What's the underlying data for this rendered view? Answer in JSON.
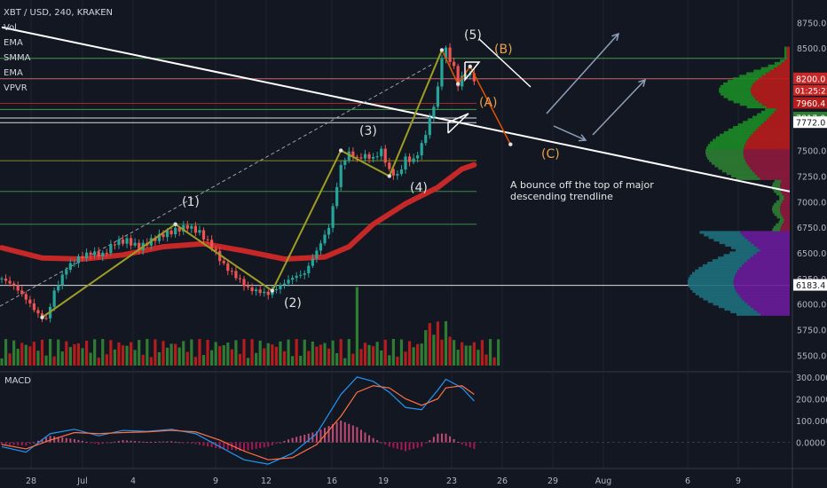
{
  "legend": {
    "symbol": "XBT / USD, 240, KRAKEN",
    "indicators": [
      "Vol",
      "EMA",
      "SMMA",
      "EMA",
      "VPVR"
    ]
  },
  "macd_label": "MACD",
  "annotation": "A bounce off the top of major descending trendline",
  "wave_labels": [
    "(1)",
    "(2)",
    "(3)",
    "(4)",
    "(5)",
    "(A)",
    "(B)",
    "(C)"
  ],
  "chart_data": {
    "type": "candlestick",
    "x_tick_labels": [
      "28",
      "Jul",
      "4",
      "9",
      "12",
      "16",
      "19",
      "23",
      "26",
      "29",
      "Aug",
      "6",
      "9"
    ],
    "y_tick_labels": [
      "8750.0",
      "8500.0",
      "8200.0",
      "7960.4",
      "7817.0",
      "7772.0",
      "7500.0",
      "7250.0",
      "7000.0",
      "6750.0",
      "6500.0",
      "6250.0",
      "6183.4",
      "6000.0",
      "5750.0",
      "5500.0"
    ],
    "ylim": [
      5400,
      8900
    ],
    "current_price_label": "8200.0",
    "countdown_label": "01:25:21",
    "price_tags": [
      {
        "price": 8200.0,
        "label": "8200.0",
        "color": "#c62828"
      },
      {
        "price": 7960.4,
        "label": "7960.4",
        "color": "#b71c1c"
      },
      {
        "price": 7817.0,
        "label": "7817.0",
        "color": "#2e7d32"
      },
      {
        "price": 7772.0,
        "label": "7772.0",
        "color": "#ffffff"
      },
      {
        "price": 6183.4,
        "label": "6183.4",
        "color": "#ffffff"
      }
    ],
    "horizontal_levels": [
      {
        "price": 8400,
        "color": "#4caf50"
      },
      {
        "price": 8200,
        "color": "#e57373"
      },
      {
        "price": 7960.4,
        "color": "#c62828"
      },
      {
        "price": 7900,
        "color": "#4caf50"
      },
      {
        "price": 7817,
        "color": "#ffffff"
      },
      {
        "price": 7772,
        "color": "#ffffff"
      },
      {
        "price": 7400,
        "color": "#9e9d24"
      },
      {
        "price": 7100,
        "color": "#43a047"
      },
      {
        "price": 6780,
        "color": "#43a047"
      },
      {
        "price": 6183.4,
        "color": "#ffffff"
      }
    ],
    "price_path": [
      [
        0,
        6250
      ],
      [
        3,
        6180
      ],
      [
        6,
        6050
      ],
      [
        9,
        5900
      ],
      [
        11,
        5850
      ],
      [
        13,
        6120
      ],
      [
        16,
        6350
      ],
      [
        19,
        6450
      ],
      [
        22,
        6500
      ],
      [
        25,
        6480
      ],
      [
        28,
        6600
      ],
      [
        31,
        6620
      ],
      [
        34,
        6550
      ],
      [
        37,
        6620
      ],
      [
        40,
        6680
      ],
      [
        43,
        6720
      ],
      [
        46,
        6760
      ],
      [
        49,
        6700
      ],
      [
        52,
        6560
      ],
      [
        55,
        6380
      ],
      [
        58,
        6270
      ],
      [
        61,
        6150
      ],
      [
        64,
        6120
      ],
      [
        66,
        6100
      ],
      [
        69,
        6180
      ],
      [
        72,
        6260
      ],
      [
        75,
        6300
      ],
      [
        78,
        6520
      ],
      [
        81,
        6750
      ],
      [
        84,
        7350
      ],
      [
        86,
        7480
      ],
      [
        88,
        7420
      ],
      [
        90,
        7450
      ],
      [
        92,
        7420
      ],
      [
        94,
        7500
      ],
      [
        96,
        7300
      ],
      [
        98,
        7250
      ],
      [
        100,
        7420
      ],
      [
        102,
        7400
      ],
      [
        104,
        7550
      ],
      [
        106,
        7800
      ],
      [
        108,
        8100
      ],
      [
        109,
        8420
      ],
      [
        110,
        8480
      ],
      [
        112,
        8300
      ],
      [
        113,
        8150
      ],
      [
        115,
        8260
      ],
      [
        117,
        8200
      ]
    ],
    "ema_red_path": [
      [
        0,
        6550
      ],
      [
        10,
        6450
      ],
      [
        20,
        6440
      ],
      [
        30,
        6480
      ],
      [
        40,
        6560
      ],
      [
        50,
        6590
      ],
      [
        60,
        6520
      ],
      [
        70,
        6440
      ],
      [
        80,
        6460
      ],
      [
        86,
        6560
      ],
      [
        92,
        6780
      ],
      [
        100,
        6980
      ],
      [
        108,
        7140
      ],
      [
        114,
        7320
      ],
      [
        117,
        7360
      ]
    ],
    "trendline": {
      "from": [
        0,
        8400
      ],
      "to": [
        180,
        7100
      ],
      "color": "#ffffff"
    },
    "wave_points": [
      {
        "bar": 10,
        "price": 5870,
        "label": ""
      },
      {
        "bar": 43,
        "price": 6780,
        "label": "(1)"
      },
      {
        "bar": 67,
        "price": 6130,
        "label": "(2)"
      },
      {
        "bar": 84,
        "price": 7500,
        "label": "(3)"
      },
      {
        "bar": 96,
        "price": 7250,
        "label": "(4)"
      },
      {
        "bar": 109,
        "price": 8480,
        "label": "(5)"
      },
      {
        "bar": 113,
        "price": 8150,
        "label": "(A)"
      },
      {
        "bar": 116,
        "price": 8320,
        "label": "(B)"
      },
      {
        "bar": 126,
        "price": 7560,
        "label": "(C)"
      }
    ],
    "volume_axis": {
      "labels": [],
      "max": 1
    },
    "macd": {
      "y_tick_labels": [
        "300.0000",
        "200.0000",
        "100.0000",
        "0.0000"
      ],
      "ylim": [
        -120,
        320
      ],
      "macd_line": [
        [
          0,
          -20
        ],
        [
          6,
          -45
        ],
        [
          12,
          40
        ],
        [
          18,
          60
        ],
        [
          24,
          30
        ],
        [
          30,
          55
        ],
        [
          36,
          50
        ],
        [
          42,
          60
        ],
        [
          48,
          40
        ],
        [
          54,
          -20
        ],
        [
          60,
          -80
        ],
        [
          66,
          -100
        ],
        [
          72,
          -50
        ],
        [
          78,
          40
        ],
        [
          84,
          220
        ],
        [
          88,
          300
        ],
        [
          92,
          280
        ],
        [
          96,
          230
        ],
        [
          100,
          160
        ],
        [
          104,
          150
        ],
        [
          108,
          240
        ],
        [
          110,
          290
        ],
        [
          114,
          250
        ],
        [
          117,
          190
        ]
      ],
      "signal_line": [
        [
          0,
          -10
        ],
        [
          6,
          -30
        ],
        [
          12,
          10
        ],
        [
          18,
          45
        ],
        [
          24,
          40
        ],
        [
          30,
          45
        ],
        [
          36,
          48
        ],
        [
          42,
          55
        ],
        [
          48,
          48
        ],
        [
          54,
          10
        ],
        [
          60,
          -40
        ],
        [
          66,
          -80
        ],
        [
          72,
          -70
        ],
        [
          78,
          -10
        ],
        [
          84,
          120
        ],
        [
          88,
          230
        ],
        [
          92,
          260
        ],
        [
          96,
          250
        ],
        [
          100,
          200
        ],
        [
          104,
          170
        ],
        [
          108,
          200
        ],
        [
          110,
          250
        ],
        [
          114,
          260
        ],
        [
          117,
          220
        ]
      ]
    }
  }
}
